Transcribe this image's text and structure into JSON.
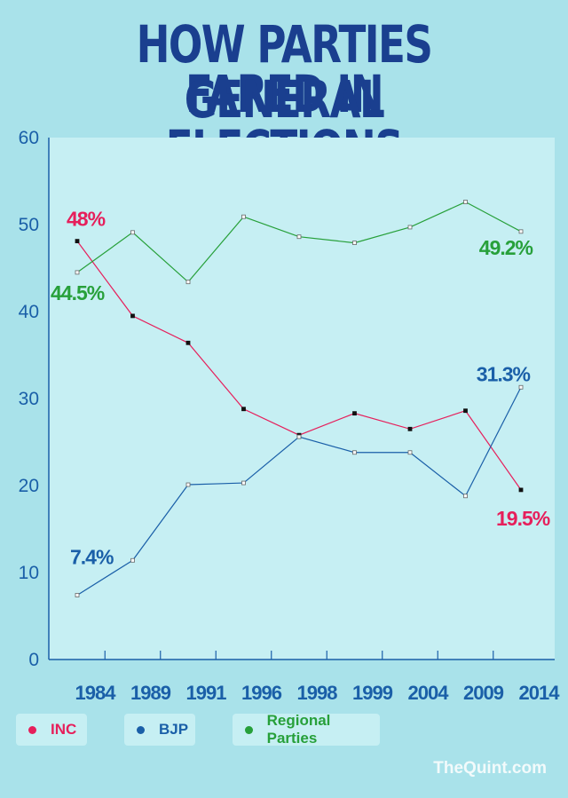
{
  "title": {
    "line1": "HOW PARTIES FARED IN",
    "line2": "GENERAL ELECTIONS"
  },
  "chart_data": {
    "type": "line",
    "x": [
      "1984",
      "1989",
      "1991",
      "1996",
      "1998",
      "1999",
      "2004",
      "2009",
      "2014"
    ],
    "ylim": [
      0,
      60
    ],
    "yticks": [
      0,
      10,
      20,
      30,
      40,
      50,
      60
    ],
    "grid": false,
    "legend_placement": "bottom",
    "series": [
      {
        "name": "INC",
        "color": "#e61f5b",
        "values": [
          48.1,
          39.5,
          36.4,
          28.8,
          25.8,
          28.3,
          26.5,
          28.6,
          19.5
        ]
      },
      {
        "name": "BJP",
        "color": "#1a5fa8",
        "values": [
          7.4,
          11.4,
          20.1,
          20.3,
          25.6,
          23.8,
          23.8,
          18.8,
          31.3
        ]
      },
      {
        "name": "Regional Parties",
        "color": "#27a03a",
        "values": [
          44.5,
          49.1,
          43.4,
          50.9,
          48.6,
          47.9,
          49.7,
          52.6,
          49.2
        ]
      }
    ],
    "annotations": [
      {
        "text": "48%",
        "series": "INC",
        "color": "#e61f5b"
      },
      {
        "text": "19.5%",
        "series": "INC",
        "color": "#e61f5b"
      },
      {
        "text": "7.4%",
        "series": "BJP",
        "color": "#1a5fa8"
      },
      {
        "text": "31.3%",
        "series": "BJP",
        "color": "#1a5fa8"
      },
      {
        "text": "44.5%",
        "series": "Regional Parties",
        "color": "#27a03a"
      },
      {
        "text": "49.2%",
        "series": "Regional Parties",
        "color": "#27a03a"
      }
    ]
  },
  "legend": [
    {
      "label": "INC",
      "color": "#e61f5b"
    },
    {
      "label": "BJP",
      "color": "#1a5fa8"
    },
    {
      "label": "Regional Parties",
      "color": "#27a03a"
    }
  ],
  "watermark": "TheQuint.com",
  "colors": {
    "background": "#a9e2ea",
    "plot_area": "#c6eff3",
    "axis": "#1a5fa8",
    "title": "#1a3f8f"
  }
}
